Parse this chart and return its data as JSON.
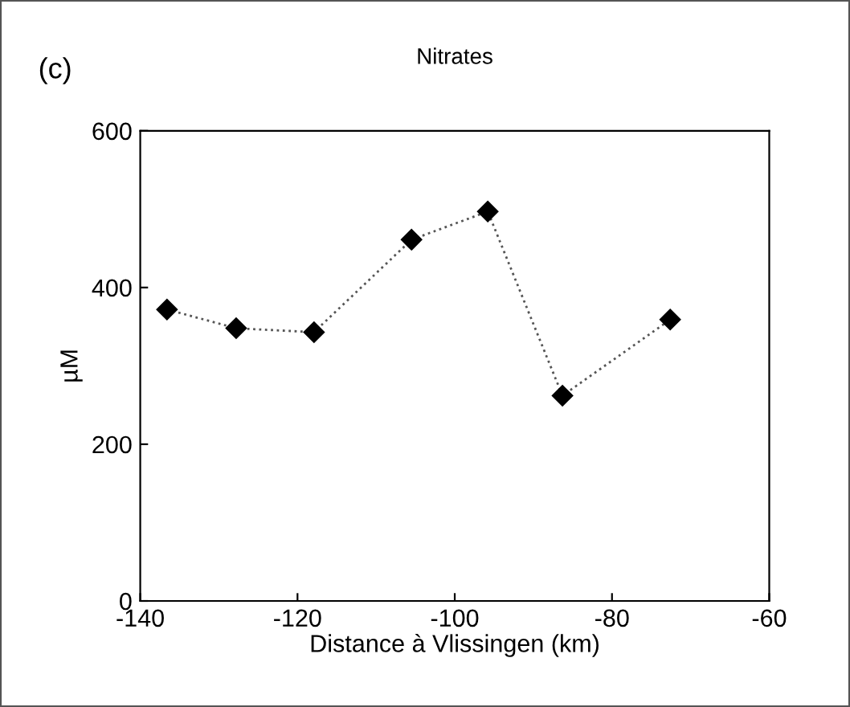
{
  "chart_data": {
    "type": "line",
    "title": "Nitrates",
    "xlabel": "Distance à Vlissingen (km)",
    "ylabel": "µM",
    "annotations": [
      "(c)"
    ],
    "x": [
      -136.6,
      -127.8,
      -117.9,
      -105.5,
      -95.8,
      -86.3,
      -72.6
    ],
    "series": [
      {
        "color": "#000000",
        "values": [
          372,
          348,
          343,
          461,
          497,
          262,
          359
        ]
      }
    ],
    "xlim": [
      -140,
      -60
    ],
    "xticks": [
      -140,
      -120,
      -100,
      -80,
      -60
    ],
    "ylim": [
      0,
      600
    ],
    "yticks": [
      0,
      200,
      400,
      600
    ],
    "marker": "diamond",
    "line_style": "dotted",
    "grid": false,
    "legend": false
  }
}
